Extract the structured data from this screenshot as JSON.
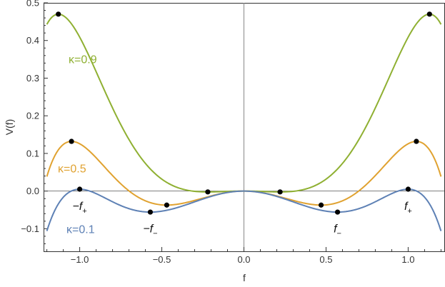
{
  "chart_data": {
    "type": "line",
    "xlabel": "f",
    "ylabel": "V(f)",
    "xlim": [
      -1.22,
      1.22
    ],
    "ylim": [
      -0.16,
      0.5
    ],
    "x_ticks": [
      -1.0,
      -0.5,
      0.0,
      0.5,
      1.0
    ],
    "x_tick_labels": [
      "-1.0",
      "-0.5",
      "0.0",
      "0.5",
      "1.0"
    ],
    "y_ticks": [
      -0.1,
      0.0,
      0.1,
      0.2,
      0.3,
      0.4,
      0.5
    ],
    "y_tick_labels": [
      "-0.1",
      "0.0",
      "0.1",
      "0.2",
      "0.3",
      "0.4",
      "0.5"
    ],
    "x_range_drawn": [
      -1.2,
      1.2
    ],
    "grid": false,
    "series": [
      {
        "name": "κ=0.9",
        "kappa": 0.9,
        "color": "#8fb032",
        "label_position": "upper-left",
        "maxima": [
          [
            -1.13,
            0.47
          ],
          [
            1.13,
            0.47
          ]
        ],
        "minima": [
          [
            -0.22,
            -0.003
          ],
          [
            0.22,
            -0.003
          ]
        ]
      },
      {
        "name": "κ=0.5",
        "kappa": 0.5,
        "color": "#e0a230",
        "label_position": "left",
        "maxima": [
          [
            -1.05,
            0.132
          ],
          [
            1.05,
            0.132
          ]
        ],
        "minima": [
          [
            -0.47,
            -0.04
          ],
          [
            0.47,
            -0.04
          ]
        ]
      },
      {
        "name": "κ=0.1",
        "kappa": 0.1,
        "color": "#5e81b5",
        "label_position": "lower-left",
        "maxima": [
          [
            -1.0,
            0.005
          ],
          [
            1.0,
            0.005
          ]
        ],
        "minima": [
          [
            -0.57,
            -0.072
          ],
          [
            0.57,
            -0.072
          ]
        ]
      }
    ],
    "annotations": [
      {
        "base": "−f",
        "sub": "+",
        "x": -1.0,
        "y": -0.05
      },
      {
        "base": "−f",
        "sub": "−",
        "x": -0.57,
        "y": -0.11
      },
      {
        "base": "f",
        "sub": "−",
        "x": 0.57,
        "y": -0.11
      },
      {
        "base": "f",
        "sub": "+",
        "x": 1.0,
        "y": -0.05
      }
    ]
  }
}
